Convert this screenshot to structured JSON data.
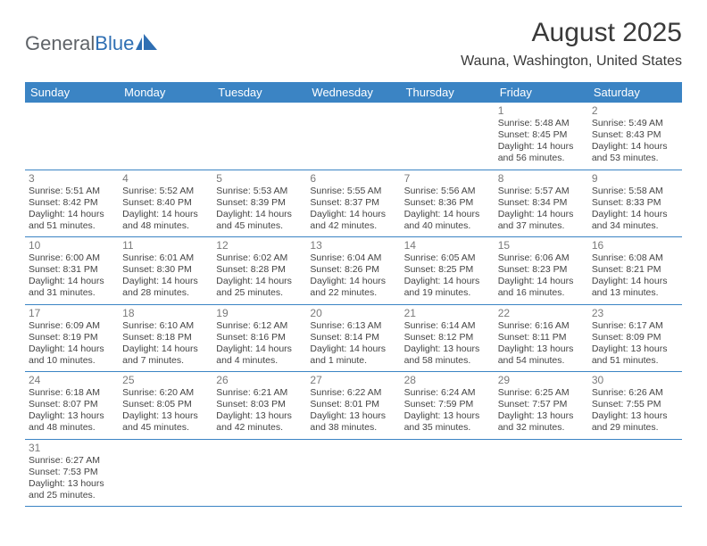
{
  "brand": {
    "part1": "General",
    "part2": "Blue"
  },
  "title": "August 2025",
  "location": "Wauna, Washington, United States",
  "colors": {
    "header_bg": "#3b84c4",
    "header_text": "#ffffff",
    "daynum": "#7a7a7a",
    "body_text": "#444444",
    "rule": "#3b84c4"
  },
  "dayNames": [
    "Sunday",
    "Monday",
    "Tuesday",
    "Wednesday",
    "Thursday",
    "Friday",
    "Saturday"
  ],
  "weeks": [
    [
      null,
      null,
      null,
      null,
      null,
      {
        "n": "1",
        "sr": "Sunrise: 5:48 AM",
        "ss": "Sunset: 8:45 PM",
        "d1": "Daylight: 14 hours",
        "d2": "and 56 minutes."
      },
      {
        "n": "2",
        "sr": "Sunrise: 5:49 AM",
        "ss": "Sunset: 8:43 PM",
        "d1": "Daylight: 14 hours",
        "d2": "and 53 minutes."
      }
    ],
    [
      {
        "n": "3",
        "sr": "Sunrise: 5:51 AM",
        "ss": "Sunset: 8:42 PM",
        "d1": "Daylight: 14 hours",
        "d2": "and 51 minutes."
      },
      {
        "n": "4",
        "sr": "Sunrise: 5:52 AM",
        "ss": "Sunset: 8:40 PM",
        "d1": "Daylight: 14 hours",
        "d2": "and 48 minutes."
      },
      {
        "n": "5",
        "sr": "Sunrise: 5:53 AM",
        "ss": "Sunset: 8:39 PM",
        "d1": "Daylight: 14 hours",
        "d2": "and 45 minutes."
      },
      {
        "n": "6",
        "sr": "Sunrise: 5:55 AM",
        "ss": "Sunset: 8:37 PM",
        "d1": "Daylight: 14 hours",
        "d2": "and 42 minutes."
      },
      {
        "n": "7",
        "sr": "Sunrise: 5:56 AM",
        "ss": "Sunset: 8:36 PM",
        "d1": "Daylight: 14 hours",
        "d2": "and 40 minutes."
      },
      {
        "n": "8",
        "sr": "Sunrise: 5:57 AM",
        "ss": "Sunset: 8:34 PM",
        "d1": "Daylight: 14 hours",
        "d2": "and 37 minutes."
      },
      {
        "n": "9",
        "sr": "Sunrise: 5:58 AM",
        "ss": "Sunset: 8:33 PM",
        "d1": "Daylight: 14 hours",
        "d2": "and 34 minutes."
      }
    ],
    [
      {
        "n": "10",
        "sr": "Sunrise: 6:00 AM",
        "ss": "Sunset: 8:31 PM",
        "d1": "Daylight: 14 hours",
        "d2": "and 31 minutes."
      },
      {
        "n": "11",
        "sr": "Sunrise: 6:01 AM",
        "ss": "Sunset: 8:30 PM",
        "d1": "Daylight: 14 hours",
        "d2": "and 28 minutes."
      },
      {
        "n": "12",
        "sr": "Sunrise: 6:02 AM",
        "ss": "Sunset: 8:28 PM",
        "d1": "Daylight: 14 hours",
        "d2": "and 25 minutes."
      },
      {
        "n": "13",
        "sr": "Sunrise: 6:04 AM",
        "ss": "Sunset: 8:26 PM",
        "d1": "Daylight: 14 hours",
        "d2": "and 22 minutes."
      },
      {
        "n": "14",
        "sr": "Sunrise: 6:05 AM",
        "ss": "Sunset: 8:25 PM",
        "d1": "Daylight: 14 hours",
        "d2": "and 19 minutes."
      },
      {
        "n": "15",
        "sr": "Sunrise: 6:06 AM",
        "ss": "Sunset: 8:23 PM",
        "d1": "Daylight: 14 hours",
        "d2": "and 16 minutes."
      },
      {
        "n": "16",
        "sr": "Sunrise: 6:08 AM",
        "ss": "Sunset: 8:21 PM",
        "d1": "Daylight: 14 hours",
        "d2": "and 13 minutes."
      }
    ],
    [
      {
        "n": "17",
        "sr": "Sunrise: 6:09 AM",
        "ss": "Sunset: 8:19 PM",
        "d1": "Daylight: 14 hours",
        "d2": "and 10 minutes."
      },
      {
        "n": "18",
        "sr": "Sunrise: 6:10 AM",
        "ss": "Sunset: 8:18 PM",
        "d1": "Daylight: 14 hours",
        "d2": "and 7 minutes."
      },
      {
        "n": "19",
        "sr": "Sunrise: 6:12 AM",
        "ss": "Sunset: 8:16 PM",
        "d1": "Daylight: 14 hours",
        "d2": "and 4 minutes."
      },
      {
        "n": "20",
        "sr": "Sunrise: 6:13 AM",
        "ss": "Sunset: 8:14 PM",
        "d1": "Daylight: 14 hours",
        "d2": "and 1 minute."
      },
      {
        "n": "21",
        "sr": "Sunrise: 6:14 AM",
        "ss": "Sunset: 8:12 PM",
        "d1": "Daylight: 13 hours",
        "d2": "and 58 minutes."
      },
      {
        "n": "22",
        "sr": "Sunrise: 6:16 AM",
        "ss": "Sunset: 8:11 PM",
        "d1": "Daylight: 13 hours",
        "d2": "and 54 minutes."
      },
      {
        "n": "23",
        "sr": "Sunrise: 6:17 AM",
        "ss": "Sunset: 8:09 PM",
        "d1": "Daylight: 13 hours",
        "d2": "and 51 minutes."
      }
    ],
    [
      {
        "n": "24",
        "sr": "Sunrise: 6:18 AM",
        "ss": "Sunset: 8:07 PM",
        "d1": "Daylight: 13 hours",
        "d2": "and 48 minutes."
      },
      {
        "n": "25",
        "sr": "Sunrise: 6:20 AM",
        "ss": "Sunset: 8:05 PM",
        "d1": "Daylight: 13 hours",
        "d2": "and 45 minutes."
      },
      {
        "n": "26",
        "sr": "Sunrise: 6:21 AM",
        "ss": "Sunset: 8:03 PM",
        "d1": "Daylight: 13 hours",
        "d2": "and 42 minutes."
      },
      {
        "n": "27",
        "sr": "Sunrise: 6:22 AM",
        "ss": "Sunset: 8:01 PM",
        "d1": "Daylight: 13 hours",
        "d2": "and 38 minutes."
      },
      {
        "n": "28",
        "sr": "Sunrise: 6:24 AM",
        "ss": "Sunset: 7:59 PM",
        "d1": "Daylight: 13 hours",
        "d2": "and 35 minutes."
      },
      {
        "n": "29",
        "sr": "Sunrise: 6:25 AM",
        "ss": "Sunset: 7:57 PM",
        "d1": "Daylight: 13 hours",
        "d2": "and 32 minutes."
      },
      {
        "n": "30",
        "sr": "Sunrise: 6:26 AM",
        "ss": "Sunset: 7:55 PM",
        "d1": "Daylight: 13 hours",
        "d2": "and 29 minutes."
      }
    ],
    [
      {
        "n": "31",
        "sr": "Sunrise: 6:27 AM",
        "ss": "Sunset: 7:53 PM",
        "d1": "Daylight: 13 hours",
        "d2": "and 25 minutes."
      },
      null,
      null,
      null,
      null,
      null,
      null
    ]
  ]
}
